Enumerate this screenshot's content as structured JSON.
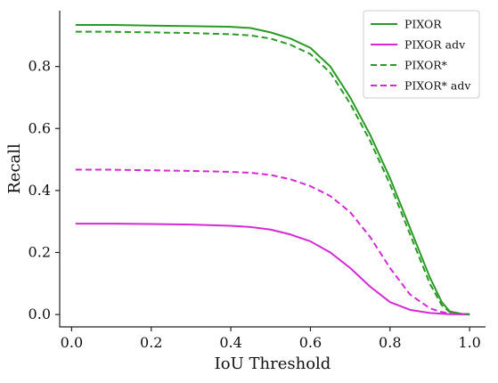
{
  "chart_data": {
    "type": "line",
    "title": "",
    "xlabel": "IoU Threshold",
    "ylabel": "Recall",
    "xlim": [
      -0.03,
      1.04
    ],
    "ylim": [
      -0.04,
      0.98
    ],
    "xticks": [
      0.0,
      0.2,
      0.4,
      0.6,
      0.8,
      1.0
    ],
    "xtick_labels": [
      "0.0",
      "0.2",
      "0.4",
      "0.6",
      "0.8",
      "1.0"
    ],
    "yticks": [
      0.0,
      0.2,
      0.4,
      0.6,
      0.8
    ],
    "ytick_labels": [
      "0.0",
      "0.2",
      "0.4",
      "0.6",
      "0.8"
    ],
    "grid": false,
    "legend_position": "top-right",
    "series": [
      {
        "name": "PIXOR",
        "color": "#2a9a26",
        "dash": "solid",
        "x": [
          0.01,
          0.1,
          0.2,
          0.3,
          0.4,
          0.45,
          0.5,
          0.55,
          0.6,
          0.65,
          0.7,
          0.75,
          0.8,
          0.85,
          0.9,
          0.93,
          0.95,
          0.98,
          1.0
        ],
        "y": [
          0.934,
          0.934,
          0.932,
          0.93,
          0.928,
          0.924,
          0.91,
          0.89,
          0.86,
          0.8,
          0.7,
          0.58,
          0.44,
          0.28,
          0.12,
          0.04,
          0.01,
          0.002,
          0.001
        ]
      },
      {
        "name": "PIXOR adv",
        "color": "#d629d6",
        "dash": "solid",
        "x": [
          0.01,
          0.1,
          0.2,
          0.3,
          0.4,
          0.45,
          0.5,
          0.55,
          0.6,
          0.65,
          0.7,
          0.75,
          0.8,
          0.85,
          0.9,
          0.95,
          1.0
        ],
        "y": [
          0.293,
          0.293,
          0.292,
          0.29,
          0.286,
          0.282,
          0.274,
          0.258,
          0.236,
          0.2,
          0.15,
          0.09,
          0.04,
          0.015,
          0.005,
          0.001,
          0.0
        ]
      },
      {
        "name": "PIXOR*",
        "color": "#2a9a26",
        "dash": "dashed",
        "x": [
          0.01,
          0.1,
          0.2,
          0.3,
          0.4,
          0.45,
          0.5,
          0.55,
          0.6,
          0.65,
          0.7,
          0.75,
          0.8,
          0.85,
          0.9,
          0.93,
          0.95,
          0.98,
          1.0
        ],
        "y": [
          0.912,
          0.912,
          0.91,
          0.908,
          0.904,
          0.9,
          0.89,
          0.87,
          0.84,
          0.78,
          0.68,
          0.56,
          0.42,
          0.26,
          0.1,
          0.03,
          0.008,
          0.002,
          0.001
        ]
      },
      {
        "name": "PIXOR* adv",
        "color": "#d629d6",
        "dash": "dashed",
        "x": [
          0.01,
          0.1,
          0.2,
          0.3,
          0.4,
          0.45,
          0.5,
          0.55,
          0.6,
          0.65,
          0.7,
          0.75,
          0.8,
          0.85,
          0.9,
          0.93,
          0.95,
          1.0
        ],
        "y": [
          0.467,
          0.467,
          0.465,
          0.463,
          0.46,
          0.457,
          0.45,
          0.436,
          0.414,
          0.382,
          0.33,
          0.25,
          0.15,
          0.065,
          0.02,
          0.008,
          0.003,
          0.0
        ]
      }
    ]
  }
}
